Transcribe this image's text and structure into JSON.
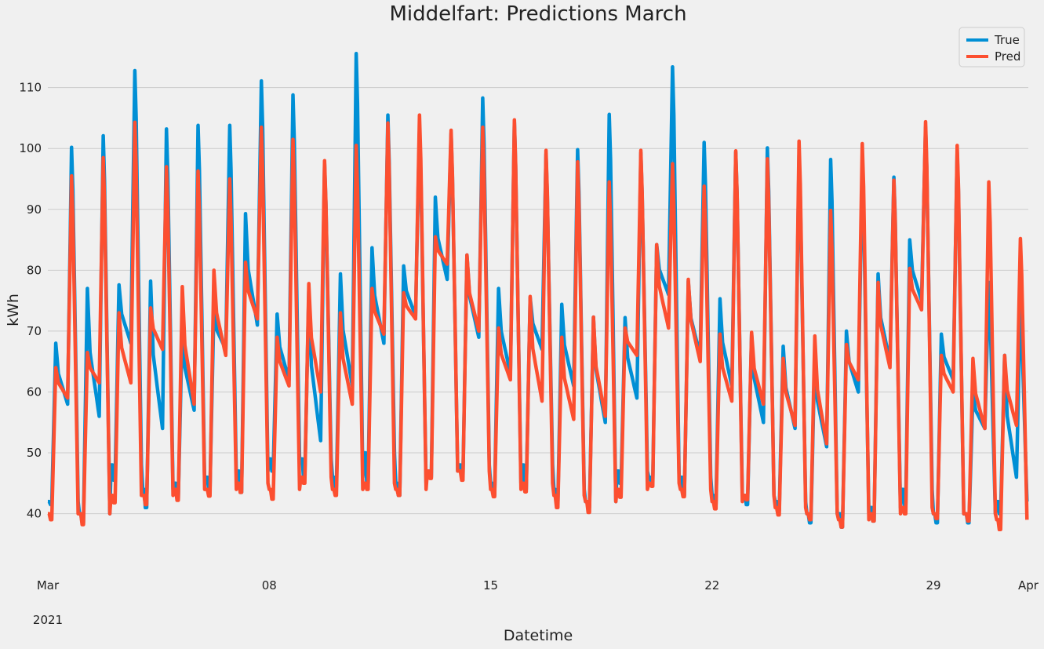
{
  "chart_data": {
    "type": "line",
    "title": "Middelfart: Predictions March",
    "xlabel": "Datetime",
    "ylabel": "kWh",
    "x_range": [
      "2021-03-01T00:00",
      "2021-04-01T00:00"
    ],
    "ylim": [
      33.5,
      119.5
    ],
    "y_ticks": [
      40,
      50,
      60,
      70,
      80,
      90,
      100,
      110
    ],
    "x_ticks": [
      {
        "date": "2021-03-01",
        "label": "Mar",
        "sublabel": "2021"
      },
      {
        "date": "2021-03-08",
        "label": "08",
        "sublabel": ""
      },
      {
        "date": "2021-03-15",
        "label": "15",
        "sublabel": ""
      },
      {
        "date": "2021-03-22",
        "label": "22",
        "sublabel": ""
      },
      {
        "date": "2021-03-29",
        "label": "29",
        "sublabel": ""
      },
      {
        "date": "2021-04-01",
        "label": "Apr",
        "sublabel": ""
      }
    ],
    "grid": true,
    "legend": "top-right",
    "sampling": "hourly (744 points, day 1 hour 0 through day 31 hour 23)",
    "series": [
      {
        "name": "True",
        "color": "#008fd5",
        "daily": [
          {
            "date": "2021-03-01",
            "min": 41.5,
            "night": 42,
            "morning_peak": 68,
            "midday": 58,
            "evening_peak": 100.2
          },
          {
            "date": "2021-03-02",
            "min": 38.5,
            "night": 40,
            "morning_peak": 77,
            "midday": 56,
            "evening_peak": 102.1
          },
          {
            "date": "2021-03-03",
            "min": 45.5,
            "night": 48,
            "morning_peak": 77.6,
            "midday": 68,
            "evening_peak": 112.8
          },
          {
            "date": "2021-03-04",
            "min": 41,
            "night": 44,
            "morning_peak": 78.2,
            "midday": 54,
            "evening_peak": 103.2
          },
          {
            "date": "2021-03-05",
            "min": 42.5,
            "night": 45,
            "morning_peak": 71,
            "midday": 57,
            "evening_peak": 103.8
          },
          {
            "date": "2021-03-06",
            "min": 44,
            "night": 46,
            "morning_peak": 73.5,
            "midday": 67,
            "evening_peak": 103.8
          },
          {
            "date": "2021-03-07",
            "min": 43.5,
            "night": 47,
            "morning_peak": 89.3,
            "midday": 71,
            "evening_peak": 111.1
          },
          {
            "date": "2021-03-08",
            "min": 47,
            "night": 49,
            "morning_peak": 72.8,
            "midday": 62,
            "evening_peak": 108.8
          },
          {
            "date": "2021-03-09",
            "min": 46,
            "night": 49,
            "morning_peak": 76.6,
            "midday": 52,
            "evening_peak": 97.5
          },
          {
            "date": "2021-03-10",
            "min": 44.5,
            "night": 46,
            "morning_peak": 79.4,
            "midday": 61,
            "evening_peak": 115.6
          },
          {
            "date": "2021-03-11",
            "min": 45,
            "night": 50,
            "morning_peak": 83.7,
            "midday": 68,
            "evening_peak": 105.5
          },
          {
            "date": "2021-03-12",
            "min": 43,
            "night": 45,
            "morning_peak": 80.7,
            "midday": 72.5,
            "evening_peak": 103.2
          },
          {
            "date": "2021-03-13",
            "min": 46,
            "night": 47,
            "morning_peak": 92,
            "midday": 78.5,
            "evening_peak": 102.5
          },
          {
            "date": "2021-03-14",
            "min": 46,
            "night": 48,
            "morning_peak": 82.5,
            "midday": 69,
            "evening_peak": 108.3
          },
          {
            "date": "2021-03-15",
            "min": 43,
            "night": 45,
            "morning_peak": 77,
            "midday": 63,
            "evening_peak": 104.3
          },
          {
            "date": "2021-03-16",
            "min": 44,
            "night": 48,
            "morning_peak": 75.5,
            "midday": 67,
            "evening_peak": 99.1
          },
          {
            "date": "2021-03-17",
            "min": 41.5,
            "night": 44,
            "morning_peak": 74.4,
            "midday": 61,
            "evening_peak": 99.8
          },
          {
            "date": "2021-03-18",
            "min": 41,
            "night": 42,
            "morning_peak": 72.3,
            "midday": 55,
            "evening_peak": 105.6
          },
          {
            "date": "2021-03-19",
            "min": 45,
            "night": 47,
            "morning_peak": 72.2,
            "midday": 59,
            "evening_peak": 99.3
          },
          {
            "date": "2021-03-20",
            "min": 45,
            "night": 46,
            "morning_peak": 84.2,
            "midday": 76,
            "evening_peak": 113.4
          },
          {
            "date": "2021-03-21",
            "min": 43,
            "night": 46,
            "morning_peak": 78.2,
            "midday": 66,
            "evening_peak": 101
          },
          {
            "date": "2021-03-22",
            "min": 41.5,
            "night": 43,
            "morning_peak": 75.3,
            "midday": 61,
            "evening_peak": 99.4
          },
          {
            "date": "2021-03-23",
            "min": 41.5,
            "night": 43,
            "morning_peak": 69.5,
            "midday": 55,
            "evening_peak": 100.1
          },
          {
            "date": "2021-03-24",
            "min": 40.5,
            "night": 42,
            "morning_peak": 67.5,
            "midday": 54,
            "evening_peak": 98.9
          },
          {
            "date": "2021-03-25",
            "min": 38.5,
            "night": 40,
            "morning_peak": 66,
            "midday": 51,
            "evening_peak": 98.2
          },
          {
            "date": "2021-03-26",
            "min": 37.8,
            "night": 40,
            "morning_peak": 70,
            "midday": 60,
            "evening_peak": 97
          },
          {
            "date": "2021-03-27",
            "min": 38.8,
            "night": 41,
            "morning_peak": 79.4,
            "midday": 65,
            "evening_peak": 95.3
          },
          {
            "date": "2021-03-28",
            "min": 41.5,
            "night": 44,
            "morning_peak": 85,
            "midday": 75,
            "evening_peak": 103.5
          },
          {
            "date": "2021-03-29",
            "min": 38.5,
            "night": 40,
            "morning_peak": 69.5,
            "midday": 62,
            "evening_peak": 99.5
          },
          {
            "date": "2021-03-30",
            "min": 38.5,
            "night": 40,
            "morning_peak": 60,
            "midday": 54,
            "evening_peak": 78
          },
          {
            "date": "2021-03-31",
            "min": 40,
            "night": 42,
            "morning_peak": 66,
            "midday": 46,
            "evening_peak": 75
          }
        ]
      },
      {
        "name": "Pred",
        "color": "#fc4f30",
        "daily": [
          {
            "date": "2021-03-01",
            "min": 39,
            "night": 40,
            "morning_peak": 64,
            "midday": 59,
            "evening_peak": 95.5
          },
          {
            "date": "2021-03-02",
            "min": 38.2,
            "night": 40,
            "morning_peak": 66.5,
            "midday": 61.5,
            "evening_peak": 98.5
          },
          {
            "date": "2021-03-03",
            "min": 41.8,
            "night": 43,
            "morning_peak": 73,
            "midday": 61.5,
            "evening_peak": 104.3
          },
          {
            "date": "2021-03-04",
            "min": 41.5,
            "night": 43,
            "morning_peak": 73.8,
            "midday": 67,
            "evening_peak": 97
          },
          {
            "date": "2021-03-05",
            "min": 42.2,
            "night": 44,
            "morning_peak": 77.3,
            "midday": 58,
            "evening_peak": 96.3
          },
          {
            "date": "2021-03-06",
            "min": 42.9,
            "night": 44,
            "morning_peak": 80,
            "midday": 66,
            "evening_peak": 95
          },
          {
            "date": "2021-03-07",
            "min": 43.5,
            "night": 45,
            "morning_peak": 81.3,
            "midday": 72,
            "evening_peak": 103.5
          },
          {
            "date": "2021-03-08",
            "min": 42.4,
            "night": 44,
            "morning_peak": 69,
            "midday": 61,
            "evening_peak": 101.5
          },
          {
            "date": "2021-03-09",
            "min": 45,
            "night": 46,
            "morning_peak": 77.8,
            "midday": 60,
            "evening_peak": 98
          },
          {
            "date": "2021-03-10",
            "min": 43,
            "night": 44,
            "morning_peak": 73,
            "midday": 58,
            "evening_peak": 100.5
          },
          {
            "date": "2021-03-11",
            "min": 44,
            "night": 45,
            "morning_peak": 77,
            "midday": 69.5,
            "evening_peak": 104.2
          },
          {
            "date": "2021-03-12",
            "min": 43,
            "night": 44,
            "morning_peak": 76.3,
            "midday": 72,
            "evening_peak": 105.5
          },
          {
            "date": "2021-03-13",
            "min": 45.8,
            "night": 47,
            "morning_peak": 85.5,
            "midday": 81,
            "evening_peak": 103
          },
          {
            "date": "2021-03-14",
            "min": 45.5,
            "night": 47,
            "morning_peak": 82.5,
            "midday": 70,
            "evening_peak": 103.5
          },
          {
            "date": "2021-03-15",
            "min": 42.8,
            "night": 44,
            "morning_peak": 70.5,
            "midday": 62,
            "evening_peak": 104.7
          },
          {
            "date": "2021-03-16",
            "min": 43.6,
            "night": 45,
            "morning_peak": 75.7,
            "midday": 58.5,
            "evening_peak": 99.7
          },
          {
            "date": "2021-03-17",
            "min": 41,
            "night": 43,
            "morning_peak": 69,
            "midday": 55.5,
            "evening_peak": 97.8
          },
          {
            "date": "2021-03-18",
            "min": 40.2,
            "night": 42,
            "morning_peak": 72.3,
            "midday": 56,
            "evening_peak": 94.5
          },
          {
            "date": "2021-03-19",
            "min": 42.7,
            "night": 44,
            "morning_peak": 70.5,
            "midday": 66,
            "evening_peak": 99.7
          },
          {
            "date": "2021-03-20",
            "min": 44.5,
            "night": 45,
            "morning_peak": 84.2,
            "midday": 70.5,
            "evening_peak": 97.5
          },
          {
            "date": "2021-03-21",
            "min": 42.8,
            "night": 44,
            "morning_peak": 78.5,
            "midday": 65,
            "evening_peak": 93.8
          },
          {
            "date": "2021-03-22",
            "min": 40.8,
            "night": 42,
            "morning_peak": 69.5,
            "midday": 58.5,
            "evening_peak": 99.6
          },
          {
            "date": "2021-03-23",
            "min": 42.3,
            "night": 43,
            "morning_peak": 69.8,
            "midday": 58,
            "evening_peak": 98.3
          },
          {
            "date": "2021-03-24",
            "min": 39.8,
            "night": 41,
            "morning_peak": 65.5,
            "midday": 54.5,
            "evening_peak": 101.2
          },
          {
            "date": "2021-03-25",
            "min": 39,
            "night": 40,
            "morning_peak": 69.2,
            "midday": 51.5,
            "evening_peak": 89.8
          },
          {
            "date": "2021-03-26",
            "min": 37.8,
            "night": 39,
            "morning_peak": 67.8,
            "midday": 62,
            "evening_peak": 100.8
          },
          {
            "date": "2021-03-27",
            "min": 38.8,
            "night": 40,
            "morning_peak": 78,
            "midday": 64,
            "evening_peak": 94.8
          },
          {
            "date": "2021-03-28",
            "min": 40,
            "night": 41,
            "morning_peak": 80.3,
            "midday": 73.5,
            "evening_peak": 104.4
          },
          {
            "date": "2021-03-29",
            "min": 39.2,
            "night": 40,
            "morning_peak": 66,
            "midday": 60,
            "evening_peak": 100.5
          },
          {
            "date": "2021-03-30",
            "min": 38.8,
            "night": 40,
            "morning_peak": 65.5,
            "midday": 54,
            "evening_peak": 94.5
          },
          {
            "date": "2021-03-31",
            "min": 37.4,
            "night": 39,
            "morning_peak": 66,
            "midday": 54.5,
            "evening_peak": 85.2
          }
        ]
      }
    ]
  }
}
